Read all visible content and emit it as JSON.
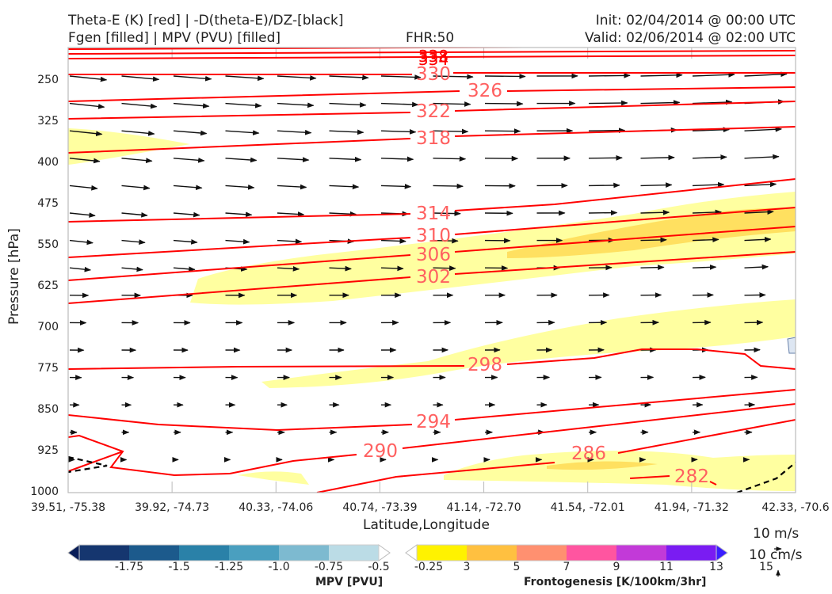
{
  "header": {
    "title_line1": "Theta-E (K) [red] | -D(theta-E)/DZ-[black]",
    "title_line2": "Fgen [filled] | MPV (PVU) [filled]",
    "fhr": "FHR:50",
    "init": "Init: 02/04/2014 @ 00:00 UTC",
    "valid": "Valid: 02/06/2014 @ 02:00 UTC"
  },
  "chart_data": {
    "type": "cross-section",
    "xlabel": "Latitude,Longitude",
    "ylabel": "Pressure [hPa]",
    "ylim": [
      1000,
      190
    ],
    "y_ticks": [
      250,
      325,
      400,
      475,
      550,
      625,
      700,
      775,
      850,
      925,
      1000
    ],
    "x_ticks": [
      "39.51, -75.38",
      "39.92, -74.73",
      "40.33, -74.06",
      "40.74, -73.39",
      "41.14, -72.70",
      "41.54, -72.01",
      "41.94, -71.32",
      "42.33, -70.6"
    ],
    "theta_e_contour_labels": [
      "338",
      "334",
      "330",
      "326",
      "322",
      "318",
      "314",
      "310",
      "306",
      "302",
      "298",
      "294",
      "290",
      "286",
      "282"
    ],
    "colors": {
      "theta_e": "#ff0000",
      "contour_label": "#ff6060",
      "vectors": "#111111",
      "fgen_low": "#ffffa0",
      "fgen_mid": "#ffe060"
    },
    "vector_reference": [
      "10 m/s",
      "10 cm/s"
    ]
  },
  "colorbars": {
    "mpv": {
      "title": "MPV [PVU]",
      "labels": [
        "-1.75",
        "-1.5",
        "-1.25",
        "-1.0",
        "-0.75",
        "-0.5",
        "-0.25"
      ],
      "colors": [
        "#081d58",
        "#15366f",
        "#1c5a8c",
        "#2a81a8",
        "#4a9fbf",
        "#7dbad0",
        "#bbdce6",
        "#ffffff"
      ]
    },
    "fgen": {
      "title": "Frontogenesis [K/100km/3hr]",
      "labels": [
        "3",
        "5",
        "7",
        "9",
        "11",
        "13",
        "15"
      ],
      "colors": [
        "#ffffff",
        "#fff200",
        "#ffc040",
        "#ff9070",
        "#ff55a0",
        "#c23ad8",
        "#7a1cf2",
        "#3a1eff"
      ]
    }
  }
}
